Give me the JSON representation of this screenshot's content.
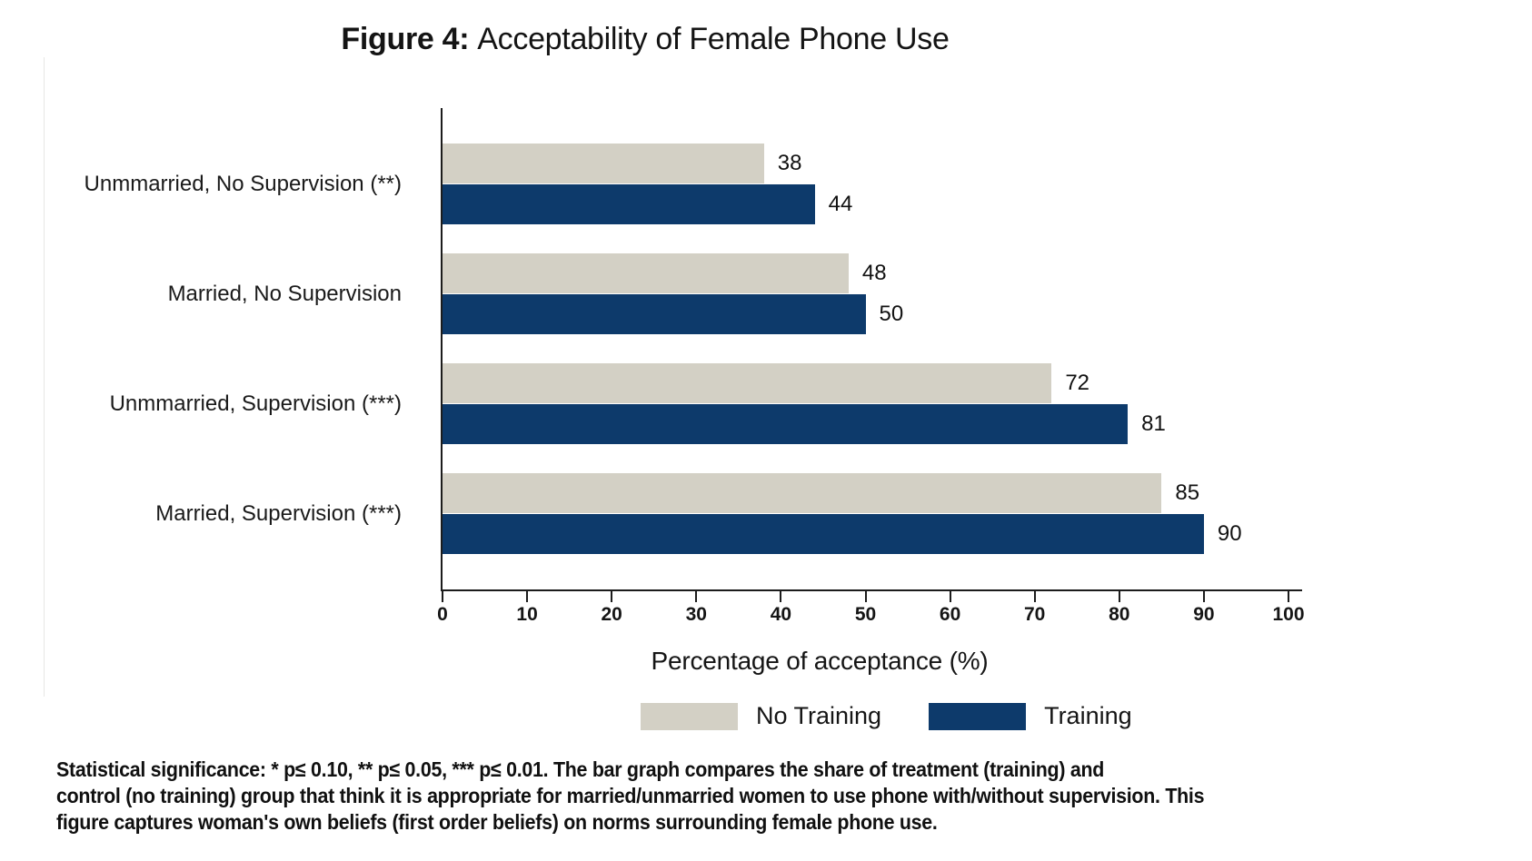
{
  "figure": {
    "title_prefix": "Figure 4:",
    "title_rest": "Acceptability of Female Phone Use"
  },
  "chart_data": {
    "type": "bar",
    "orientation": "horizontal",
    "title": "Figure 4: Acceptability of Female Phone Use",
    "categories": [
      "Unmmarried, No Supervision (**)",
      "Married, No Supervision",
      "Unmmarried, Supervision (***)",
      "Married, Supervision (***)"
    ],
    "series": [
      {
        "name": "No Training",
        "color": "#d3d0c5",
        "values": [
          38,
          48,
          72,
          85
        ]
      },
      {
        "name": "Training",
        "color": "#0d3a6b",
        "values": [
          44,
          50,
          81,
          90
        ]
      }
    ],
    "xlabel": "Percentage of acceptance (%)",
    "ylabel": "",
    "xlim": [
      0,
      100
    ],
    "xticks": [
      0,
      10,
      20,
      30,
      40,
      50,
      60,
      70,
      80,
      90,
      100
    ],
    "grid": false,
    "value_labels": true,
    "legend_position": "bottom"
  },
  "footnote": {
    "lines": [
      "Statistical significance:  * p≤ 0.10, ** p≤ 0.05, *** p≤ 0.01.  The bar graph compares the share of treatment (training) and",
      "control (no training) group that think it is appropriate for married/unmarried women to use phone with/without supervision.  This",
      "figure captures woman's own beliefs (first order beliefs) on norms surrounding female phone use."
    ]
  },
  "colors": {
    "no_training": "#d3d0c5",
    "training": "#0d3a6b",
    "axis": "#1c1c1c",
    "text": "#111111"
  }
}
